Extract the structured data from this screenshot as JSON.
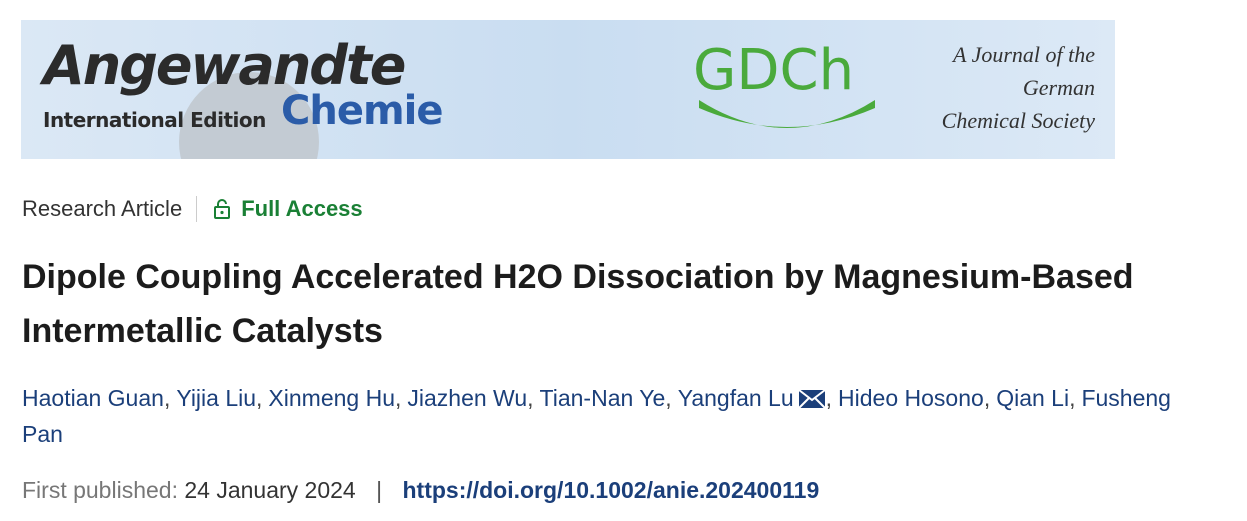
{
  "banner": {
    "journal": "Angewandte",
    "edition": "International Edition",
    "subtitle": "Chemie",
    "society_logo": "GDCh",
    "tagline": [
      "A Journal of the",
      "German",
      "Chemical Society"
    ]
  },
  "article": {
    "type": "Research Article",
    "access": "Full Access",
    "title": "Dipole Coupling Accelerated H2O Dissociation by Magnesium-Based Intermetallic Catalysts",
    "authors": [
      {
        "name": "Haotian Guan",
        "sep": ","
      },
      {
        "name": "Yijia Liu",
        "sep": ","
      },
      {
        "name": "Xinmeng Hu",
        "sep": ","
      },
      {
        "name": "Jiazhen Wu",
        "sep": ","
      },
      {
        "name": "Tian-Nan Ye",
        "sep": ","
      },
      {
        "name": "Yangfan Lu",
        "sep": ",",
        "corresponding": true
      },
      {
        "name": "Hideo Hosono",
        "sep": ","
      },
      {
        "name": "Qian Li",
        "sep": ","
      },
      {
        "name": "Fusheng Pan"
      }
    ],
    "published_label": "First published:",
    "published_date": "24 January 2024",
    "separator": "|",
    "doi": "https://doi.org/10.1002/anie.202400119"
  }
}
